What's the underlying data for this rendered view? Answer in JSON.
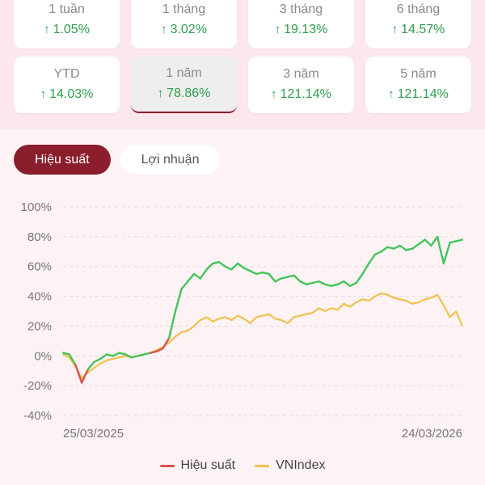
{
  "periods": [
    {
      "label": "1 tuần",
      "value": "1.05%"
    },
    {
      "label": "1 tháng",
      "value": "3.02%"
    },
    {
      "label": "3 tháng",
      "value": "19.13%"
    },
    {
      "label": "6 tháng",
      "value": "14.57%"
    },
    {
      "label": "YTD",
      "value": "14.03%"
    },
    {
      "label": "1 năm",
      "value": "78.86%",
      "selected": true
    },
    {
      "label": "3 năm",
      "value": "121.14%"
    },
    {
      "label": "5 năm",
      "value": "121.14%"
    }
  ],
  "tabs": [
    {
      "label": "Hiệu suất",
      "active": true
    },
    {
      "label": "Lợi nhuận",
      "active": false
    }
  ],
  "colors": {
    "accent": "#8b1e2c",
    "positive": "#2e9d4e",
    "series_up": "#44c45c",
    "series_down": "#d9534f",
    "vnindex": "#f2c14e"
  },
  "chart_data": {
    "type": "line",
    "x_start_label": "25/03/2025",
    "x_end_label": "24/03/2026",
    "yticks": [
      "100%",
      "80%",
      "60%",
      "40%",
      "20%",
      "0%",
      "-20%",
      "-40%"
    ],
    "ylim": [
      -40,
      100
    ],
    "grid": true,
    "legend_position": "bottom",
    "series": [
      {
        "name": "Hiệu suất",
        "values": [
          2,
          1,
          -6,
          -18,
          -9,
          -4,
          -2,
          1,
          0,
          2,
          1,
          -1,
          0,
          1,
          2,
          3,
          5,
          12,
          30,
          45,
          50,
          55,
          52,
          58,
          62,
          63,
          60,
          58,
          62,
          59,
          57,
          55,
          56,
          55,
          50,
          52,
          53,
          54,
          50,
          48,
          49,
          50,
          48,
          47,
          48,
          50,
          47,
          49,
          55,
          62,
          68,
          70,
          73,
          72,
          74,
          71,
          72,
          75,
          78,
          74,
          80,
          62,
          76,
          77,
          78
        ]
      },
      {
        "name": "VNIndex",
        "values": [
          1,
          -1,
          -7,
          -15,
          -11,
          -8,
          -5,
          -3,
          -2,
          -1,
          0,
          -1,
          0,
          1,
          2,
          4,
          6,
          9,
          13,
          16,
          17,
          20,
          24,
          26,
          23,
          25,
          26,
          24,
          27,
          25,
          22,
          26,
          27,
          28,
          25,
          24,
          22,
          26,
          27,
          28,
          29,
          32,
          30,
          32,
          31,
          35,
          33,
          36,
          38,
          37,
          40,
          42,
          41,
          39,
          38,
          37,
          35,
          36,
          38,
          39,
          41,
          34,
          26,
          30,
          20
        ]
      }
    ]
  }
}
